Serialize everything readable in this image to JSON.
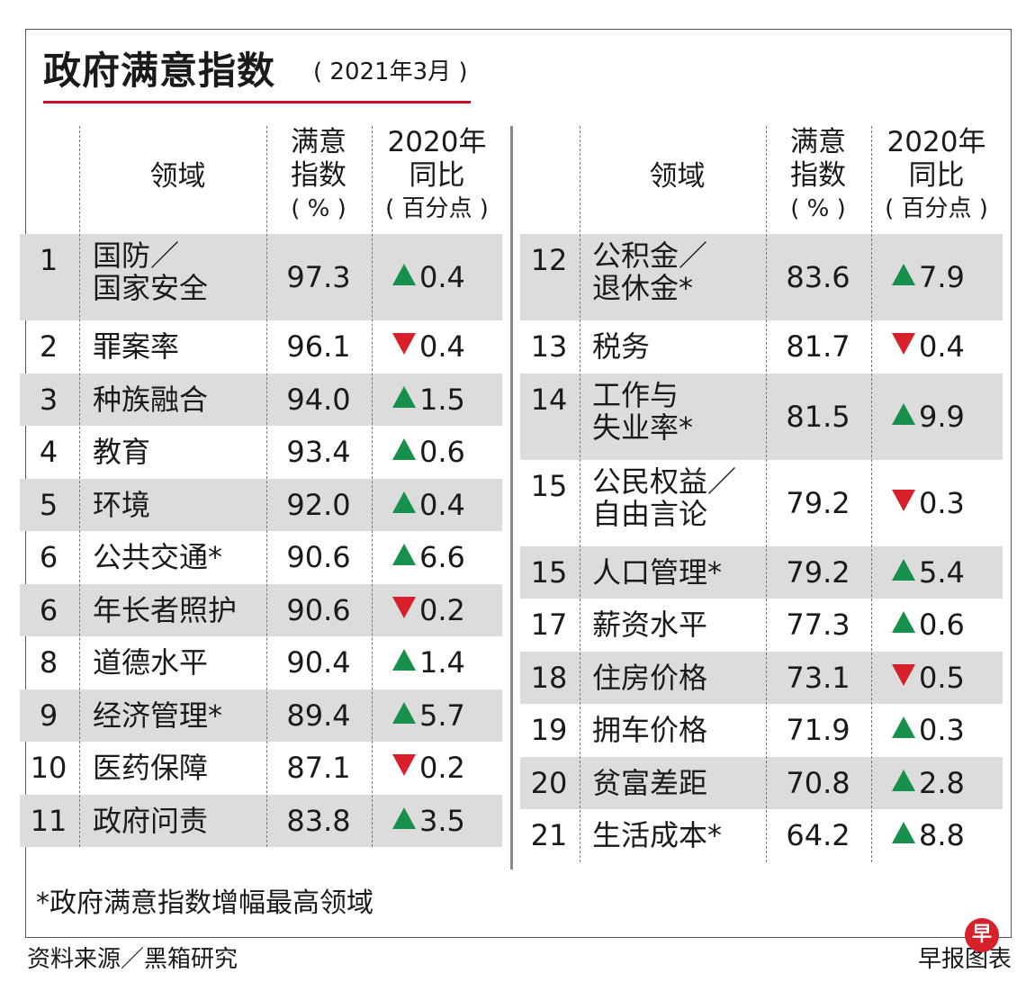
{
  "header": {
    "title": "政府满意指数",
    "subtitle": "( 2021年3月 )"
  },
  "columns": {
    "area": "领域",
    "index_line1": "满意",
    "index_line2": "指数",
    "index_line3": "( % )",
    "change_line1": "2020年",
    "change_line2": "同比",
    "change_line3": "( 百分点 )"
  },
  "chart_data": {
    "type": "table",
    "title": "政府满意指数",
    "subtitle": "( 2021年3月 )",
    "columns": [
      "领域",
      "满意指数 ( % )",
      "2020年同比 ( 百分点 )"
    ],
    "rows": [
      {
        "rank": "1",
        "area": "国防／国家安全",
        "lines": [
          "国防／",
          "国家安全"
        ],
        "index": "97.3",
        "change": "0.4",
        "direction": "up"
      },
      {
        "rank": "2",
        "area": "罪案率",
        "lines": [
          "罪案率"
        ],
        "index": "96.1",
        "change": "0.4",
        "direction": "down"
      },
      {
        "rank": "3",
        "area": "种族融合",
        "lines": [
          "种族融合"
        ],
        "index": "94.0",
        "change": "1.5",
        "direction": "up"
      },
      {
        "rank": "4",
        "area": "教育",
        "lines": [
          "教育"
        ],
        "index": "93.4",
        "change": "0.6",
        "direction": "up"
      },
      {
        "rank": "5",
        "area": "环境",
        "lines": [
          "环境"
        ],
        "index": "92.0",
        "change": "0.4",
        "direction": "up"
      },
      {
        "rank": "6",
        "area": "公共交通*",
        "lines": [
          "公共交通*"
        ],
        "index": "90.6",
        "change": "6.6",
        "direction": "up"
      },
      {
        "rank": "6",
        "area": "年长者照护",
        "lines": [
          "年长者照护"
        ],
        "index": "90.6",
        "change": "0.2",
        "direction": "down"
      },
      {
        "rank": "8",
        "area": "道德水平",
        "lines": [
          "道德水平"
        ],
        "index": "90.4",
        "change": "1.4",
        "direction": "up"
      },
      {
        "rank": "9",
        "area": "经济管理*",
        "lines": [
          "经济管理*"
        ],
        "index": "89.4",
        "change": "5.7",
        "direction": "up"
      },
      {
        "rank": "10",
        "area": "医药保障",
        "lines": [
          "医药保障"
        ],
        "index": "87.1",
        "change": "0.2",
        "direction": "down"
      },
      {
        "rank": "11",
        "area": "政府问责",
        "lines": [
          "政府问责"
        ],
        "index": "83.8",
        "change": "3.5",
        "direction": "up"
      },
      {
        "rank": "12",
        "area": "公积金／退休金*",
        "lines": [
          "公积金／",
          "退休金*"
        ],
        "index": "83.6",
        "change": "7.9",
        "direction": "up"
      },
      {
        "rank": "13",
        "area": "税务",
        "lines": [
          "税务"
        ],
        "index": "81.7",
        "change": "0.4",
        "direction": "down"
      },
      {
        "rank": "14",
        "area": "工作与失业率*",
        "lines": [
          "工作与",
          "失业率*"
        ],
        "index": "81.5",
        "change": "9.9",
        "direction": "up"
      },
      {
        "rank": "15",
        "area": "公民权益／自由言论",
        "lines": [
          "公民权益／",
          "自由言论"
        ],
        "index": "79.2",
        "change": "0.3",
        "direction": "down"
      },
      {
        "rank": "15",
        "area": "人口管理*",
        "lines": [
          "人口管理*"
        ],
        "index": "79.2",
        "change": "5.4",
        "direction": "up"
      },
      {
        "rank": "17",
        "area": "薪资水平",
        "lines": [
          "薪资水平"
        ],
        "index": "77.3",
        "change": "0.6",
        "direction": "up"
      },
      {
        "rank": "18",
        "area": "住房价格",
        "lines": [
          "住房价格"
        ],
        "index": "73.1",
        "change": "0.5",
        "direction": "down"
      },
      {
        "rank": "19",
        "area": "拥车价格",
        "lines": [
          "拥车价格"
        ],
        "index": "71.9",
        "change": "0.3",
        "direction": "up"
      },
      {
        "rank": "20",
        "area": "贫富差距",
        "lines": [
          "贫富差距"
        ],
        "index": "70.8",
        "change": "2.8",
        "direction": "up"
      },
      {
        "rank": "21",
        "area": "生活成本*",
        "lines": [
          "生活成本*"
        ],
        "index": "64.2",
        "change": "8.8",
        "direction": "up"
      }
    ],
    "colors": {
      "up": "#16904a",
      "down": "#d7202a",
      "shade": "#dcdcdc",
      "title_rule": "#c8102e"
    }
  },
  "footer": {
    "footnote": "*政府满意指数增幅最高领域",
    "source": "资料来源／黑箱研究",
    "credit": "早报图表",
    "logo_char": "早"
  }
}
